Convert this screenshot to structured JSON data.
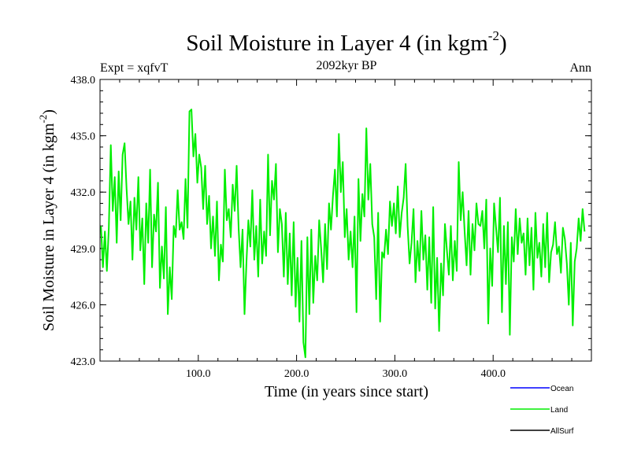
{
  "chart_data": {
    "type": "line",
    "title_main": "Soil Moisture in Layer 4 (in kgm",
    "title_sup": "-2",
    "title_close": ")",
    "subtitle": "2092kyr BP",
    "left_label": "Expt = xqfvT",
    "right_label": "Ann",
    "xlabel": "Time (in years since start)",
    "ylabel_main": "Soil Moisture in Layer 4 (in kgm",
    "ylabel_sup": "-2",
    "ylabel_close": ")",
    "xlim": [
      0,
      500
    ],
    "ylim": [
      423,
      438
    ],
    "x_ticks": [
      100,
      200,
      300,
      400
    ],
    "x_tick_labels": [
      "100.0",
      "200.0",
      "300.0",
      "400.0"
    ],
    "y_ticks": [
      423,
      426,
      429,
      432,
      435,
      438
    ],
    "y_tick_labels": [
      "423.0",
      "426.0",
      "429.0",
      "432.0",
      "435.0",
      "438.0"
    ],
    "legend": [
      {
        "name": "Ocean",
        "color": "#0000ff"
      },
      {
        "name": "Land",
        "color": "#00ee00"
      },
      {
        "name": "AllSurf",
        "color": "#000000"
      }
    ],
    "series": [
      {
        "name": "Land",
        "color": "#00ee00",
        "x_start": 1,
        "x_step": 2,
        "values": [
          430.2,
          428.0,
          429.9,
          427.8,
          430.1,
          434.5,
          431.0,
          432.8,
          429.3,
          433.1,
          430.5,
          434.0,
          434.6,
          432.2,
          430.3,
          431.5,
          428.4,
          431.7,
          430.0,
          432.8,
          428.9,
          430.6,
          427.1,
          431.4,
          429.3,
          433.2,
          428.0,
          430.8,
          429.9,
          432.5,
          426.9,
          429.1,
          427.4,
          431.2,
          425.5,
          428.0,
          426.3,
          430.2,
          429.6,
          432.1,
          430.0,
          430.4,
          429.5,
          432.7,
          430.1,
          436.3,
          436.4,
          433.9,
          435.1,
          432.5,
          434.0,
          433.3,
          431.1,
          433.4,
          430.3,
          431.8,
          429.0,
          430.7,
          428.6,
          431.5,
          427.3,
          429.2,
          428.3,
          433.2,
          430.5,
          431.1,
          429.6,
          432.4,
          431.0,
          433.4,
          430.1,
          428.0,
          430.0,
          425.5,
          428.3,
          430.5,
          429.1,
          432.1,
          428.4,
          430.2,
          427.5,
          431.6,
          428.2,
          429.9,
          428.6,
          434.0,
          429.7,
          432.6,
          431.6,
          433.5,
          428.8,
          431.1,
          430.3,
          427.5,
          430.9,
          427.1,
          429.8,
          426.5,
          430.4,
          425.9,
          428.5,
          425.1,
          429.4,
          424.0,
          423.2,
          429.6,
          425.5,
          430.0,
          426.1,
          428.6,
          427.3,
          430.5,
          429.0,
          427.2,
          430.3,
          427.9,
          431.4,
          430.0,
          431.8,
          433.2,
          430.7,
          435.1,
          432.0,
          433.6,
          429.6,
          431.1,
          428.4,
          429.9,
          428.0,
          430.7,
          425.6,
          432.7,
          429.4,
          431.9,
          430.7,
          435.4,
          431.6,
          433.5,
          430.3,
          429.6,
          426.3,
          430.9,
          425.1,
          428.8,
          428.5,
          430.0,
          428.7,
          431.5,
          430.2,
          431.4,
          429.8,
          432.3,
          429.6,
          430.9,
          431.7,
          433.5,
          430.2,
          428.2,
          429.3,
          431.1,
          427.2,
          429.4,
          427.8,
          431.0,
          428.4,
          429.7,
          426.8,
          429.6,
          426.1,
          431.2,
          425.8,
          428.5,
          424.6,
          428.2,
          426.5,
          430.3,
          428.9,
          427.6,
          430.2,
          427.3,
          429.4,
          427.8,
          433.6,
          430.5,
          432.0,
          429.9,
          428.1,
          431.0,
          427.6,
          430.3,
          428.9,
          431.4,
          430.3,
          430.2,
          431.0,
          429.0,
          431.6,
          425.0,
          429.0,
          427.0,
          431.4,
          430.1,
          428.8,
          431.7,
          425.6,
          430.2,
          427.1,
          430.4,
          424.4,
          429.6,
          428.3,
          431.1,
          428.7,
          430.6,
          429.3,
          429.8,
          427.6,
          430.6,
          428.1,
          430.1,
          426.8,
          430.9,
          428.5,
          429.3,
          427.5,
          430.3,
          428.0,
          430.9,
          427.2,
          428.8,
          429.2,
          430.4,
          428.7,
          429.1,
          427.7,
          430.1,
          429.5,
          428.2,
          426.0,
          429.3,
          424.9,
          428.3,
          429.0,
          430.6,
          429.4,
          431.1,
          429.9
        ]
      }
    ]
  }
}
